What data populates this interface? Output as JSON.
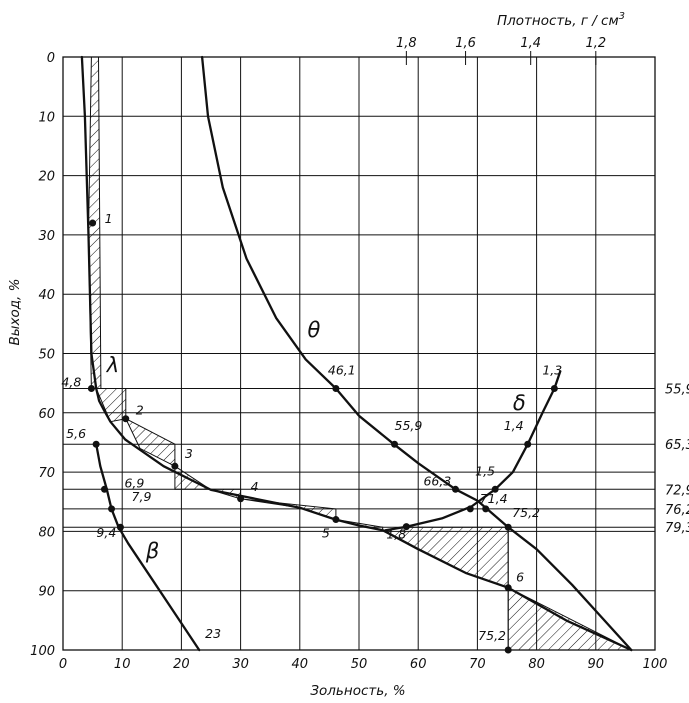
{
  "chart_data": {
    "type": "line",
    "xlabel": "Зольность, %",
    "ylabel": "Выход, %",
    "top_axis_label": "Плотность, г / см",
    "top_axis_label_sup": "3",
    "x_ticks": [
      "0",
      "10",
      "20",
      "30",
      "40",
      "50",
      "60",
      "70",
      "80",
      "90",
      "100"
    ],
    "y_ticks": [
      "0",
      "10",
      "20",
      "30",
      "40",
      "50",
      "60",
      "70",
      "80",
      "90",
      "100"
    ],
    "density_ticks": [
      {
        "label": "1,8",
        "ash": 58
      },
      {
        "label": "1,6",
        "ash": 68
      },
      {
        "label": "1,4",
        "ash": 79
      },
      {
        "label": "1,2",
        "ash": 90
      }
    ],
    "xlim": [
      0,
      100
    ],
    "ylim": [
      100,
      0
    ],
    "curve_labels": {
      "theta": "θ",
      "lambda": "λ",
      "delta": "δ",
      "beta": "β"
    },
    "series": [
      {
        "name": "λ",
        "x": [
          3.2,
          3.7,
          4.3,
          4.8,
          5.6,
          6.1,
          6.9,
          8.0,
          10.5,
          17.0,
          25.0,
          40.0,
          46.0,
          50.0,
          54.0,
          60.0,
          68.0,
          75.2,
          85.0,
          96.0
        ],
        "y": [
          0,
          10,
          30,
          50,
          55.9,
          58,
          59.5,
          61.5,
          64.5,
          69,
          73,
          76,
          78,
          79,
          79.8,
          83,
          87,
          89.5,
          95,
          100
        ]
      },
      {
        "name": "β",
        "x": [
          5.6,
          6.3,
          7.4,
          8.2,
          9.4,
          11.0,
          15.0,
          19.0,
          23.0
        ],
        "y": [
          65.3,
          69,
          72.9,
          76.2,
          79.3,
          82,
          88,
          94,
          100
        ]
      },
      {
        "name": "θ",
        "x": [
          23.5,
          24.5,
          27.0,
          31.0,
          36.0,
          41.0,
          46.1,
          50.0,
          55.9,
          60.0,
          66.3,
          70.0,
          75.2,
          80.0,
          86.0,
          91.0,
          96.0
        ],
        "y": [
          0,
          10,
          22,
          34,
          44,
          51,
          55.9,
          60.5,
          65.3,
          68.5,
          72.9,
          74.8,
          79.3,
          83,
          89,
          94.5,
          100
        ]
      },
      {
        "name": "δ",
        "x": [
          84.0,
          83.0,
          81.0,
          78.5,
          76.0,
          73.0,
          69.0,
          64.0,
          58.0,
          54.5
        ],
        "y": [
          53.0,
          55.9,
          60.0,
          65.3,
          70.0,
          72.9,
          75.8,
          77.8,
          79.2,
          79.8
        ]
      }
    ],
    "marked_points": [
      {
        "label": "1",
        "x": 5.0,
        "y": 28
      },
      {
        "label": "2",
        "x": 10.6,
        "y": 61
      },
      {
        "label": "3",
        "x": 18.9,
        "y": 69
      },
      {
        "label": "4",
        "x": 30.0,
        "y": 74.5
      },
      {
        "label": "5",
        "x": 46.1,
        "y": 78
      },
      {
        "label": "6",
        "x": 75.2,
        "y": 89.5
      },
      {
        "label": "4,8",
        "x": 4.8,
        "y": 55.9
      },
      {
        "label": "5,6",
        "x": 5.6,
        "y": 65.3
      },
      {
        "label": "6,9",
        "x": 7.0,
        "y": 72.9
      },
      {
        "label": "7,9",
        "x": 8.2,
        "y": 76.2
      },
      {
        "label": "9,4",
        "x": 9.7,
        "y": 79.3
      },
      {
        "label": "46,1",
        "x": 46.1,
        "y": 55.9
      },
      {
        "label": "55,9",
        "x": 56.0,
        "y": 65.3
      },
      {
        "label": "66,3",
        "x": 66.3,
        "y": 72.9
      },
      {
        "label": "71,4",
        "x": 71.4,
        "y": 76.2
      },
      {
        "label": "75,2",
        "x": 75.2,
        "y": 79.3
      },
      {
        "label": "1,3",
        "x": 83.0,
        "y": 55.9
      },
      {
        "label": "1,4",
        "x": 78.5,
        "y": 65.3
      },
      {
        "label": "1,5",
        "x": 73.0,
        "y": 72.9
      },
      {
        "label": "",
        "x": 68.8,
        "y": 76.2
      },
      {
        "label": "1,8",
        "x": 58.0,
        "y": 79.2
      },
      {
        "label": "75,2",
        "x": 75.2,
        "y": 100
      }
    ],
    "right_labels": [
      {
        "label": "55,9",
        "y": 55.9
      },
      {
        "label": "65,3",
        "y": 65.3
      },
      {
        "label": "72,9",
        "y": 72.9
      },
      {
        "label": "76,2",
        "y": 76.2
      },
      {
        "label": "79,3",
        "y": 79.3
      }
    ],
    "bottom_label": {
      "label": "23",
      "x": 23,
      "y": 100
    },
    "grid": true
  }
}
